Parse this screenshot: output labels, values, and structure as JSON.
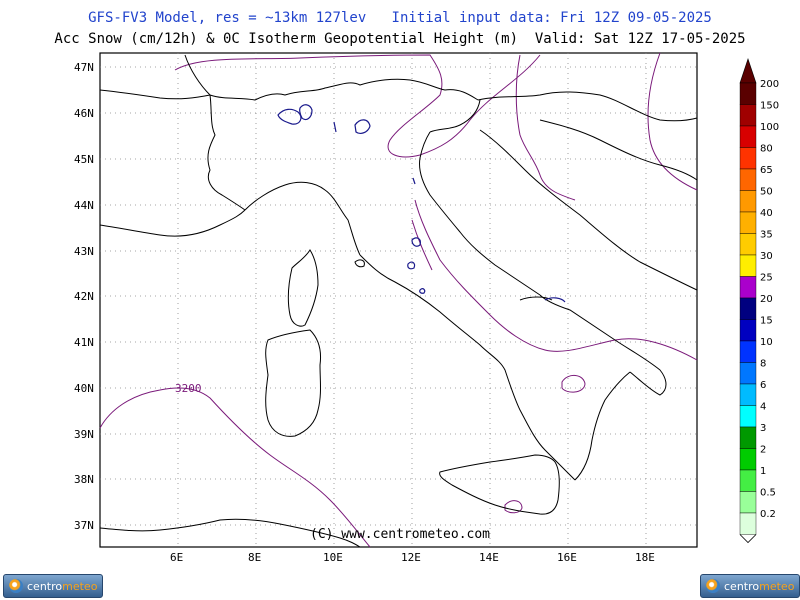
{
  "header": {
    "line1": "GFS-FV3 Model, res = ~13km 127lev   Initial input data: Fri 12Z 09-05-2025",
    "line2": "Acc Snow (cm/12h) & 0C Isotherm Geopotential Height (m)  Valid: Sat 12Z 17-05-2025"
  },
  "map": {
    "lat_labels": [
      "47N",
      "46N",
      "45N",
      "44N",
      "43N",
      "42N",
      "41N",
      "40N",
      "39N",
      "38N",
      "37N"
    ],
    "lon_labels": [
      "6E",
      "8E",
      "10E",
      "12E",
      "14E",
      "16E",
      "18E"
    ],
    "contour_label": "3200",
    "copyright": "(C) www.centrometeo.com"
  },
  "legend": {
    "levels": [
      {
        "label": "200",
        "color": "#5a0000"
      },
      {
        "label": "150",
        "color": "#a00000"
      },
      {
        "label": "100",
        "color": "#d80000"
      },
      {
        "label": "80",
        "color": "#ff3300"
      },
      {
        "label": "65",
        "color": "#ff6600"
      },
      {
        "label": "50",
        "color": "#ff9900"
      },
      {
        "label": "40",
        "color": "#ffb000"
      },
      {
        "label": "35",
        "color": "#ffcc00"
      },
      {
        "label": "30",
        "color": "#ffee00"
      },
      {
        "label": "25",
        "color": "#aa00cc"
      },
      {
        "label": "20",
        "color": "#000080"
      },
      {
        "label": "15",
        "color": "#0000c0"
      },
      {
        "label": "10",
        "color": "#0033ff"
      },
      {
        "label": "8",
        "color": "#0077ff"
      },
      {
        "label": "6",
        "color": "#00bbff"
      },
      {
        "label": "4",
        "color": "#00ffff"
      },
      {
        "label": "3",
        "color": "#009900"
      },
      {
        "label": "2",
        "color": "#00cc00"
      },
      {
        "label": "1",
        "color": "#44ee44"
      },
      {
        "label": "0.5",
        "color": "#99ff99"
      },
      {
        "label": "0.2",
        "color": "#ddffdd"
      }
    ]
  },
  "logos": {
    "prefix": "centro",
    "suffix": "meteo"
  }
}
